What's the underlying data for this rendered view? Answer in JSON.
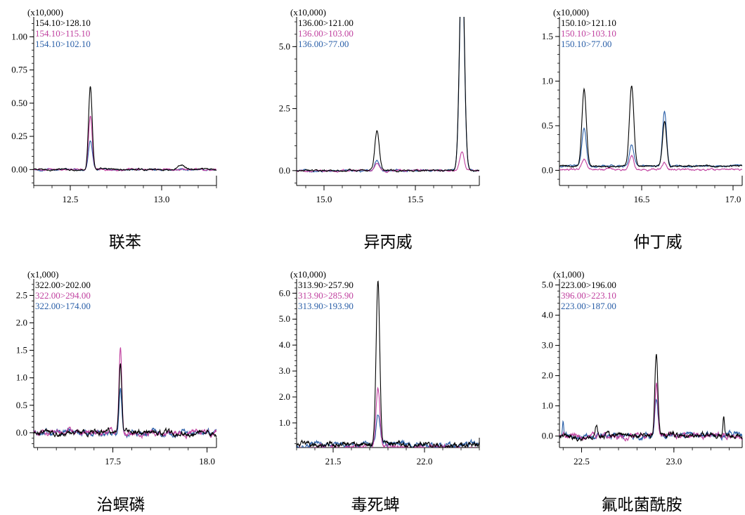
{
  "chart_data": [
    {
      "type": "line",
      "title": "联苯",
      "scale_label": "(x10,000)",
      "xlim": [
        12.3,
        13.3
      ],
      "ylim": [
        -0.12,
        1.15
      ],
      "x_ticks": [
        12.5,
        13.0
      ],
      "x_tick_labels": [
        "12.5",
        "13.0"
      ],
      "y_ticks": [
        0.0,
        0.25,
        0.5,
        0.75,
        1.0
      ],
      "y_tick_labels": [
        "0.00",
        "0.25",
        "0.50",
        "0.75",
        "1.00"
      ],
      "series": [
        {
          "name": "154.10>128.10",
          "color": "#000000",
          "peaks": [
            {
              "x": 12.61,
              "h": 0.63,
              "w": 0.01
            },
            {
              "x": 13.11,
              "h": 0.03,
              "w": 0.02
            }
          ]
        },
        {
          "name": "154.10>115.10",
          "color": "#c0409f",
          "peaks": [
            {
              "x": 12.61,
              "h": 0.41,
              "w": 0.01
            }
          ]
        },
        {
          "name": "154.10>102.10",
          "color": "#2a5fa8",
          "peaks": [
            {
              "x": 12.61,
              "h": 0.21,
              "w": 0.011
            }
          ]
        }
      ]
    },
    {
      "type": "line",
      "title": "异丙威",
      "scale_label": "(x10,000)",
      "xlim": [
        14.85,
        15.85
      ],
      "ylim": [
        -0.6,
        6.2
      ],
      "x_ticks": [
        15.0,
        15.5
      ],
      "x_tick_labels": [
        "15.0",
        "15.5"
      ],
      "y_ticks": [
        0.0,
        2.5,
        5.0
      ],
      "y_tick_labels": [
        "0.0",
        "2.5",
        "5.0"
      ],
      "series": [
        {
          "name": "136.00>121.00",
          "color": "#000000",
          "peaks": [
            {
              "x": 15.29,
              "h": 1.6,
              "w": 0.012
            },
            {
              "x": 15.755,
              "h": 9.0,
              "w": 0.013
            }
          ]
        },
        {
          "name": "136.00>103.00",
          "color": "#c0409f",
          "peaks": [
            {
              "x": 15.29,
              "h": 0.28,
              "w": 0.012
            },
            {
              "x": 15.755,
              "h": 0.72,
              "w": 0.012
            }
          ]
        },
        {
          "name": "136.00>77.00",
          "color": "#2a5fa8",
          "peaks": [
            {
              "x": 15.29,
              "h": 0.4,
              "w": 0.012
            },
            {
              "x": 15.755,
              "h": 8.5,
              "w": 0.013
            }
          ]
        }
      ]
    },
    {
      "type": "line",
      "title": "仲丁威",
      "scale_label": "(x10,000)",
      "xlim": [
        16.05,
        17.05
      ],
      "ylim": [
        -0.17,
        1.72
      ],
      "x_ticks": [
        16.5,
        17.0
      ],
      "x_tick_labels": [
        "16.5",
        "17.0"
      ],
      "y_ticks": [
        0.0,
        0.5,
        1.0,
        1.5
      ],
      "y_tick_labels": [
        "0.0",
        "0.5",
        "1.0",
        "1.5"
      ],
      "series": [
        {
          "name": "150.10>121.10",
          "color": "#000000",
          "peaks": [
            {
              "x": 16.185,
              "h": 0.86,
              "w": 0.012
            },
            {
              "x": 16.445,
              "h": 0.9,
              "w": 0.012
            },
            {
              "x": 16.625,
              "h": 0.5,
              "w": 0.011
            }
          ]
        },
        {
          "name": "150.10>103.10",
          "color": "#c0409f",
          "peaks": [
            {
              "x": 16.185,
              "h": 0.12,
              "w": 0.012
            },
            {
              "x": 16.445,
              "h": 0.16,
              "w": 0.012
            },
            {
              "x": 16.625,
              "h": 0.08,
              "w": 0.011
            }
          ]
        },
        {
          "name": "150.10>77.00",
          "color": "#2a5fa8",
          "peaks": [
            {
              "x": 16.185,
              "h": 0.42,
              "w": 0.012
            },
            {
              "x": 16.445,
              "h": 0.24,
              "w": 0.012
            },
            {
              "x": 16.625,
              "h": 0.62,
              "w": 0.011
            }
          ]
        }
      ]
    },
    {
      "type": "line",
      "title": "治螟磷",
      "scale_label": "(x1,000)",
      "xlim": [
        17.08,
        18.05
      ],
      "ylim": [
        -0.27,
        2.8
      ],
      "x_ticks": [
        17.5,
        18.0
      ],
      "x_tick_labels": [
        "17.5",
        "18.0"
      ],
      "y_ticks": [
        0.0,
        0.5,
        1.0,
        1.5,
        2.0,
        2.5
      ],
      "y_tick_labels": [
        "0.0",
        "0.5",
        "1.0",
        "1.5",
        "2.0",
        "2.5"
      ],
      "series": [
        {
          "name": "322.00>202.00",
          "color": "#000000",
          "peaks": [
            {
              "x": 17.54,
              "h": 1.24,
              "w": 0.007
            }
          ]
        },
        {
          "name": "322.00>294.00",
          "color": "#c0409f",
          "peaks": [
            {
              "x": 17.54,
              "h": 1.56,
              "w": 0.007
            }
          ]
        },
        {
          "name": "322.00>174.00",
          "color": "#2a5fa8",
          "peaks": [
            {
              "x": 17.54,
              "h": 0.84,
              "w": 0.007
            }
          ]
        }
      ]
    },
    {
      "type": "line",
      "title": "毒死蜱",
      "scale_label": "(x10,000)",
      "xlim": [
        21.3,
        22.3
      ],
      "ylim": [
        0.05,
        6.55
      ],
      "x_ticks": [
        21.5,
        22.0
      ],
      "x_tick_labels": [
        "21.5",
        "22.0"
      ],
      "y_ticks": [
        1.0,
        2.0,
        3.0,
        4.0,
        5.0,
        6.0
      ],
      "y_tick_labels": [
        "1.0",
        "2.0",
        "3.0",
        "4.0",
        "5.0",
        "6.0"
      ],
      "series": [
        {
          "name": "313.90>257.90",
          "color": "#000000",
          "peaks": [
            {
              "x": 21.745,
              "h": 6.2,
              "w": 0.01
            }
          ]
        },
        {
          "name": "313.90>285.90",
          "color": "#c0409f",
          "peaks": [
            {
              "x": 21.745,
              "h": 2.4,
              "w": 0.011
            }
          ]
        },
        {
          "name": "313.90>193.90",
          "color": "#2a5fa8",
          "peaks": [
            {
              "x": 21.745,
              "h": 1.15,
              "w": 0.011
            }
          ]
        }
      ]
    },
    {
      "type": "line",
      "title": "氟吡菌酰胺",
      "scale_label": "(x1,000)",
      "xlim": [
        22.38,
        23.37
      ],
      "ylim": [
        -0.38,
        5.2
      ],
      "x_ticks": [
        22.5,
        23.0
      ],
      "x_tick_labels": [
        "22.5",
        "23.0"
      ],
      "y_ticks": [
        0.0,
        1.0,
        2.0,
        3.0,
        4.0,
        5.0
      ],
      "y_tick_labels": [
        "0.0",
        "1.0",
        "2.0",
        "3.0",
        "4.0",
        "5.0"
      ],
      "series": [
        {
          "name": "223.00>196.00",
          "color": "#000000",
          "peaks": [
            {
              "x": 22.905,
              "h": 2.75,
              "w": 0.008
            },
            {
              "x": 23.27,
              "h": 0.62,
              "w": 0.004
            },
            {
              "x": 22.58,
              "h": 0.35,
              "w": 0.006
            }
          ]
        },
        {
          "name": "396.00>223.10",
          "color": "#c0409f",
          "peaks": [
            {
              "x": 22.905,
              "h": 1.8,
              "w": 0.008
            }
          ]
        },
        {
          "name": "223.00>187.00",
          "color": "#2a5fa8",
          "peaks": [
            {
              "x": 22.905,
              "h": 1.2,
              "w": 0.008
            },
            {
              "x": 22.4,
              "h": 0.5,
              "w": 0.004
            }
          ]
        }
      ]
    }
  ]
}
